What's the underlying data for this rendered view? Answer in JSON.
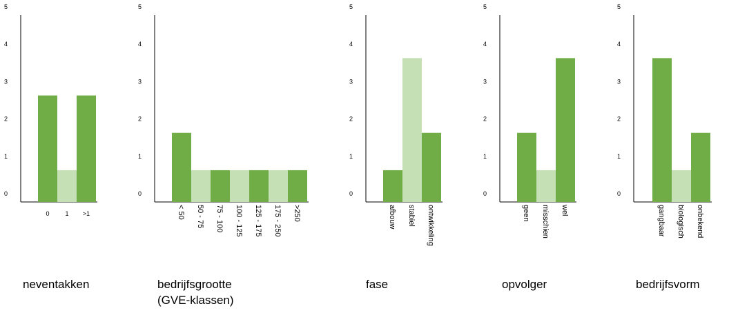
{
  "colors": {
    "dark": "#70ad47",
    "light": "#c5e0b4"
  },
  "chart_data": [
    {
      "type": "bar",
      "title": "neventakken",
      "categories": [
        "0",
        "1",
        ">1"
      ],
      "values": [
        3,
        1,
        3
      ],
      "ylim": [
        0,
        5
      ],
      "yticks": [
        "0",
        "1",
        "2",
        "3",
        "4",
        "5"
      ],
      "rotated_labels": false
    },
    {
      "type": "bar",
      "title": [
        "bedrijfsgrootte",
        "(GVE-klassen)"
      ],
      "categories": [
        "< 50",
        "50 - 75",
        "75 - 100",
        "100 - 125",
        "125 - 175",
        "175 - 250",
        ">250"
      ],
      "values": [
        2,
        1,
        1,
        1,
        1,
        1,
        1
      ],
      "ylim": [
        0,
        5
      ],
      "yticks": [
        "0",
        "1",
        "2",
        "3",
        "4",
        "5"
      ],
      "rotated_labels": true
    },
    {
      "type": "bar",
      "title": "fase",
      "categories": [
        "afbouw",
        "stabiel",
        "ontwikkeling"
      ],
      "values": [
        1,
        4,
        2
      ],
      "ylim": [
        0,
        5
      ],
      "yticks": [
        "0",
        "1",
        "2",
        "3",
        "4",
        "5"
      ],
      "rotated_labels": true
    },
    {
      "type": "bar",
      "title": "opvolger",
      "categories": [
        "geen",
        "misschien",
        "wel"
      ],
      "values": [
        2,
        1,
        4
      ],
      "ylim": [
        0,
        5
      ],
      "yticks": [
        "0",
        "1",
        "2",
        "3",
        "4",
        "5"
      ],
      "rotated_labels": true
    },
    {
      "type": "bar",
      "title": "bedrijfsvorm",
      "categories": [
        "gangbaar",
        "biologisch",
        "onbekend"
      ],
      "values": [
        4,
        1,
        2
      ],
      "ylim": [
        0,
        5
      ],
      "yticks": [
        "0",
        "1",
        "2",
        "3",
        "4",
        "5"
      ],
      "rotated_labels": true
    }
  ]
}
